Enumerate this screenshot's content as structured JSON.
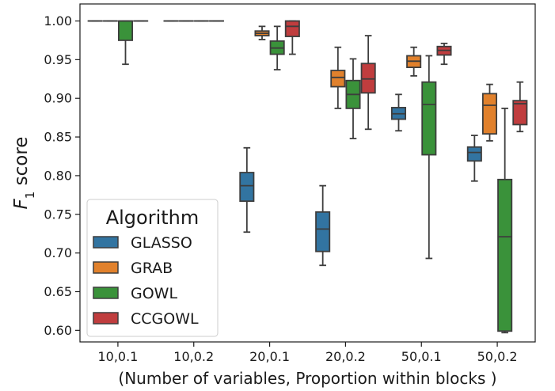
{
  "chart_data": {
    "type": "box",
    "xlabel": "(Number of variables, Proportion within blocks )",
    "ylabel_main": "F",
    "ylabel_sub": "1",
    "ylabel_rest": " score",
    "categories": [
      "10,0.1",
      "10,0.2",
      "20,0.1",
      "20,0.2",
      "50,0.1",
      "50,0.2"
    ],
    "ylim": [
      0.585,
      1.022
    ],
    "yticks": [
      1.0,
      0.95,
      0.9,
      0.85,
      0.8,
      0.75,
      0.7,
      0.65,
      0.6
    ],
    "ytick_labels": [
      "1.00",
      "0.95",
      "0.90",
      "0.85",
      "0.80",
      "0.75",
      "0.70",
      "0.65",
      "0.60"
    ],
    "grid": false,
    "legend": {
      "title": "Algorithm",
      "placement": "bottom-left"
    },
    "series": [
      {
        "name": "GLASSO",
        "color": "#3274a1",
        "boxes": [
          {
            "wlow": 1.0,
            "q1": 1.0,
            "median": 1.0,
            "q3": 1.0,
            "whigh": 1.0
          },
          {
            "wlow": 1.0,
            "q1": 1.0,
            "median": 1.0,
            "q3": 1.0,
            "whigh": 1.0
          },
          {
            "wlow": 0.727,
            "q1": 0.767,
            "median": 0.787,
            "q3": 0.804,
            "whigh": 0.836
          },
          {
            "wlow": 0.684,
            "q1": 0.702,
            "median": 0.731,
            "q3": 0.753,
            "whigh": 0.787
          },
          {
            "wlow": 0.858,
            "q1": 0.873,
            "median": 0.88,
            "q3": 0.888,
            "whigh": 0.905
          },
          {
            "wlow": 0.793,
            "q1": 0.819,
            "median": 0.83,
            "q3": 0.837,
            "whigh": 0.852
          }
        ]
      },
      {
        "name": "GRAB",
        "color": "#e1812c",
        "boxes": [
          {
            "wlow": 1.0,
            "q1": 1.0,
            "median": 1.0,
            "q3": 1.0,
            "whigh": 1.0
          },
          {
            "wlow": 1.0,
            "q1": 1.0,
            "median": 1.0,
            "q3": 1.0,
            "whigh": 1.0
          },
          {
            "wlow": 0.976,
            "q1": 0.981,
            "median": 0.984,
            "q3": 0.987,
            "whigh": 0.993
          },
          {
            "wlow": 0.887,
            "q1": 0.915,
            "median": 0.927,
            "q3": 0.936,
            "whigh": 0.966
          },
          {
            "wlow": 0.929,
            "q1": 0.94,
            "median": 0.948,
            "q3": 0.955,
            "whigh": 0.966
          },
          {
            "wlow": 0.845,
            "q1": 0.854,
            "median": 0.891,
            "q3": 0.906,
            "whigh": 0.918
          }
        ]
      },
      {
        "name": "GOWL",
        "color": "#3a923a",
        "boxes": [
          {
            "wlow": 0.944,
            "q1": 0.975,
            "median": 1.0,
            "q3": 1.0,
            "whigh": 1.0
          },
          {
            "wlow": 1.0,
            "q1": 1.0,
            "median": 1.0,
            "q3": 1.0,
            "whigh": 1.0
          },
          {
            "wlow": 0.937,
            "q1": 0.957,
            "median": 0.965,
            "q3": 0.974,
            "whigh": 0.993
          },
          {
            "wlow": 0.848,
            "q1": 0.887,
            "median": 0.905,
            "q3": 0.923,
            "whigh": 0.951
          },
          {
            "wlow": 0.693,
            "q1": 0.827,
            "median": 0.892,
            "q3": 0.921,
            "whigh": 0.955
          },
          {
            "wlow": 0.597,
            "q1": 0.599,
            "median": 0.721,
            "q3": 0.795,
            "whigh": 0.887
          }
        ]
      },
      {
        "name": "CCGOWL",
        "color": "#c03d3e",
        "boxes": [
          {
            "wlow": 1.0,
            "q1": 1.0,
            "median": 1.0,
            "q3": 1.0,
            "whigh": 1.0
          },
          {
            "wlow": 1.0,
            "q1": 1.0,
            "median": 1.0,
            "q3": 1.0,
            "whigh": 1.0
          },
          {
            "wlow": 0.957,
            "q1": 0.98,
            "median": 0.993,
            "q3": 1.0,
            "whigh": 1.0
          },
          {
            "wlow": 0.86,
            "q1": 0.907,
            "median": 0.925,
            "q3": 0.945,
            "whigh": 0.981
          },
          {
            "wlow": 0.944,
            "q1": 0.956,
            "median": 0.962,
            "q3": 0.967,
            "whigh": 0.971
          },
          {
            "wlow": 0.857,
            "q1": 0.866,
            "median": 0.893,
            "q3": 0.897,
            "whigh": 0.921
          }
        ]
      }
    ]
  }
}
